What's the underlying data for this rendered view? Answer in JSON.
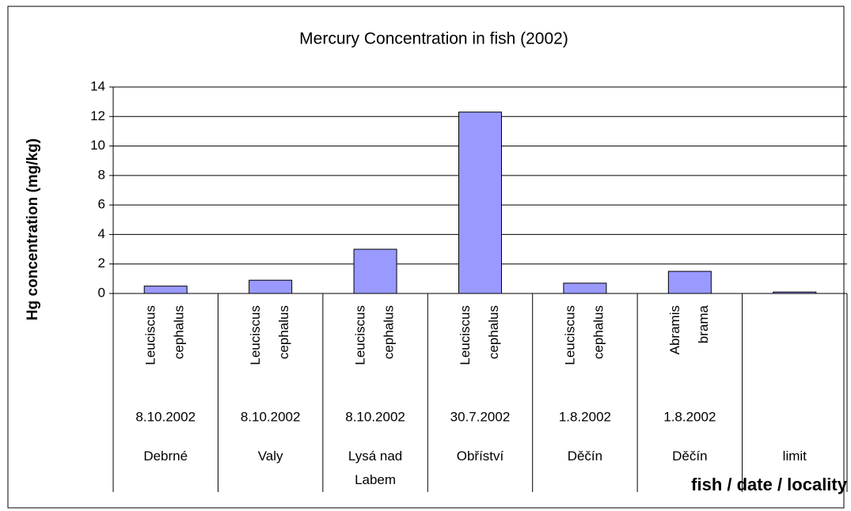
{
  "chart_data": {
    "type": "bar",
    "title": "Mercury Concentration in fish (2002)",
    "ylabel": "Hg concentration (mg/kg)",
    "xlabel": "fish / date / locality",
    "categories": [
      "Debrné",
      "Valy",
      "Lysá nad Labem",
      "Obříství",
      "Děčín",
      "Děčín",
      "limit"
    ],
    "fish": [
      [
        "Leuciscus",
        "cephalus"
      ],
      [
        "Leuciscus",
        "cephalus"
      ],
      [
        "Leuciscus",
        "cephalus"
      ],
      [
        "Leuciscus",
        "cephalus"
      ],
      [
        "Leuciscus",
        "cephalus"
      ],
      [
        "Abramis",
        "brama"
      ],
      null
    ],
    "dates": [
      "8.10.2002",
      "8.10.2002",
      "8.10.2002",
      "30.7.2002",
      "1.8.2002",
      "1.8.2002",
      null
    ],
    "values": [
      0.5,
      0.9,
      3.0,
      12.3,
      0.7,
      1.5,
      0.1
    ],
    "color": "#9999ff",
    "ylim": [
      0,
      14
    ],
    "yticks": [
      0,
      2,
      4,
      6,
      8,
      10,
      12,
      14
    ],
    "grid": true
  }
}
